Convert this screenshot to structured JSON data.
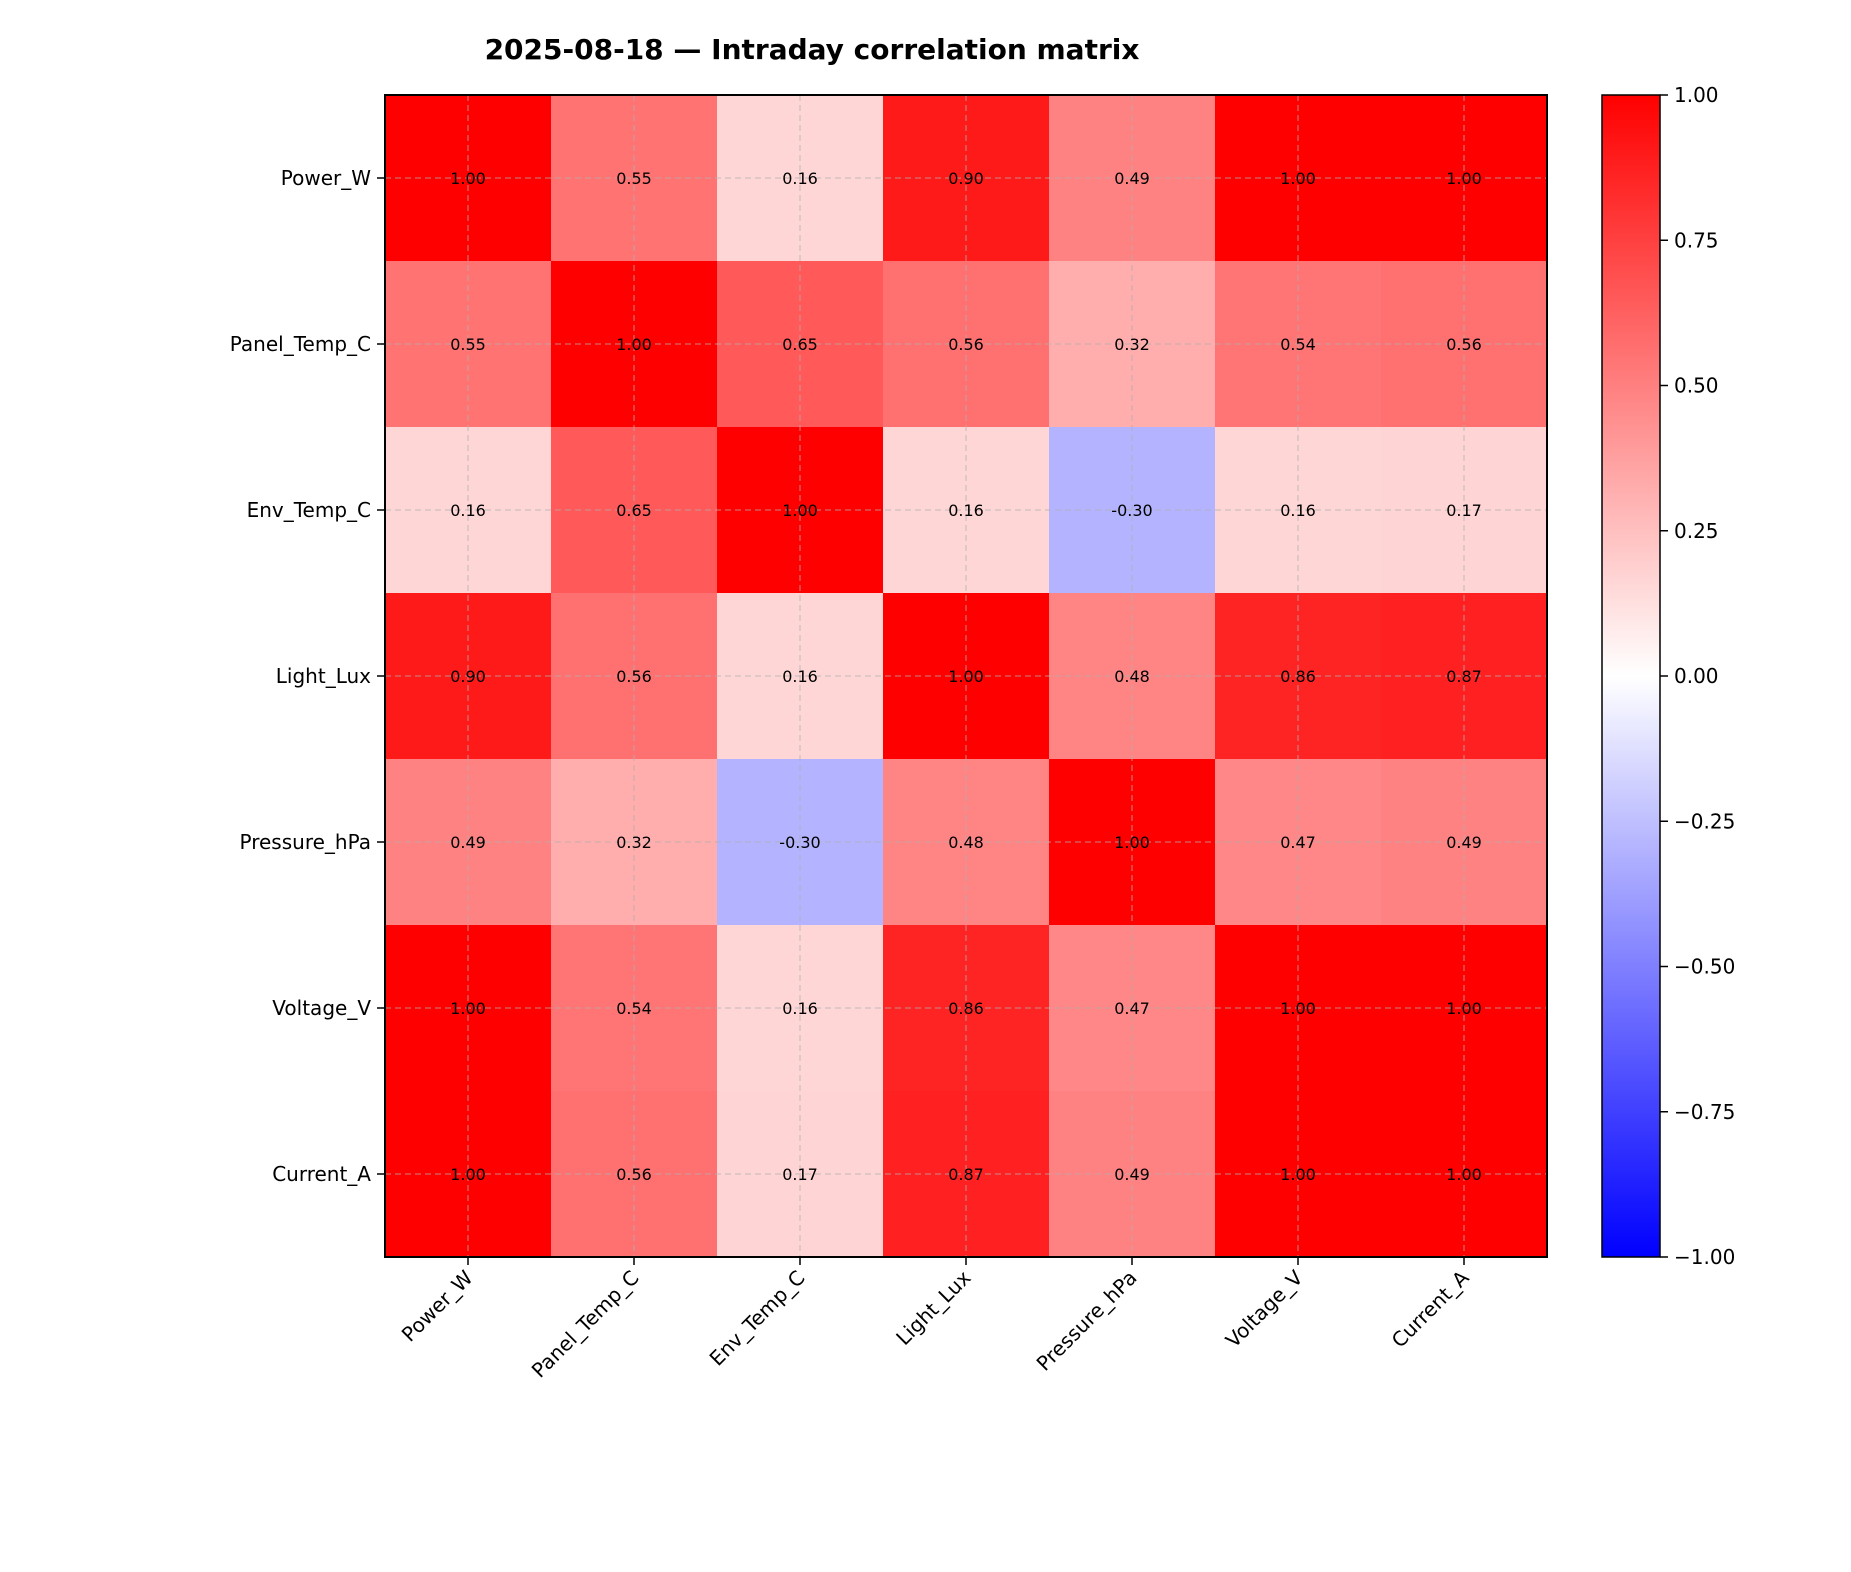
{
  "chart_data": {
    "type": "heatmap",
    "title": "2025-08-18 — Intraday correlation matrix",
    "rows": [
      "Power_W",
      "Panel_Temp_C",
      "Env_Temp_C",
      "Light_Lux",
      "Pressure_hPa",
      "Voltage_V",
      "Current_A"
    ],
    "columns": [
      "Power_W",
      "Panel_Temp_C",
      "Env_Temp_C",
      "Light_Lux",
      "Pressure_hPa",
      "Voltage_V",
      "Current_A"
    ],
    "values": [
      [
        1.0,
        0.55,
        0.16,
        0.9,
        0.49,
        1.0,
        1.0
      ],
      [
        0.55,
        1.0,
        0.65,
        0.56,
        0.32,
        0.54,
        0.56
      ],
      [
        0.16,
        0.65,
        1.0,
        0.16,
        -0.3,
        0.16,
        0.17
      ],
      [
        0.9,
        0.56,
        0.16,
        1.0,
        0.48,
        0.86,
        0.87
      ],
      [
        0.49,
        0.32,
        -0.3,
        0.48,
        1.0,
        0.47,
        0.49
      ],
      [
        1.0,
        0.54,
        0.16,
        0.86,
        0.47,
        1.0,
        1.0
      ],
      [
        1.0,
        0.56,
        0.17,
        0.87,
        0.49,
        1.0,
        1.0
      ]
    ],
    "value_labels": [
      [
        "1.00",
        "0.55",
        "0.16",
        "0.90",
        "0.49",
        "1.00",
        "1.00"
      ],
      [
        "0.55",
        "1.00",
        "0.65",
        "0.56",
        "0.32",
        "0.54",
        "0.56"
      ],
      [
        "0.16",
        "0.65",
        "1.00",
        "0.16",
        "-0.30",
        "0.16",
        "0.17"
      ],
      [
        "0.90",
        "0.56",
        "0.16",
        "1.00",
        "0.48",
        "0.86",
        "0.87"
      ],
      [
        "0.49",
        "0.32",
        "-0.30",
        "0.48",
        "1.00",
        "0.47",
        "0.49"
      ],
      [
        "1.00",
        "0.54",
        "0.16",
        "0.86",
        "0.47",
        "1.00",
        "1.00"
      ],
      [
        "1.00",
        "0.56",
        "0.17",
        "0.87",
        "0.49",
        "1.00",
        "1.00"
      ]
    ],
    "colormap": "bwr",
    "vmin": -1.0,
    "vmax": 1.0,
    "colorbar_ticks": [
      1.0,
      0.75,
      0.5,
      0.25,
      0.0,
      -0.25,
      -0.5,
      -0.75,
      -1.0
    ],
    "colorbar_tick_labels": [
      "1.00",
      "0.75",
      "0.50",
      "0.25",
      "0.00",
      "−0.25",
      "−0.50",
      "−0.75",
      "−1.00"
    ],
    "grid": true,
    "colors": {
      "low": "#0000ff",
      "mid": "#ffffff",
      "high": "#ff0000"
    }
  }
}
